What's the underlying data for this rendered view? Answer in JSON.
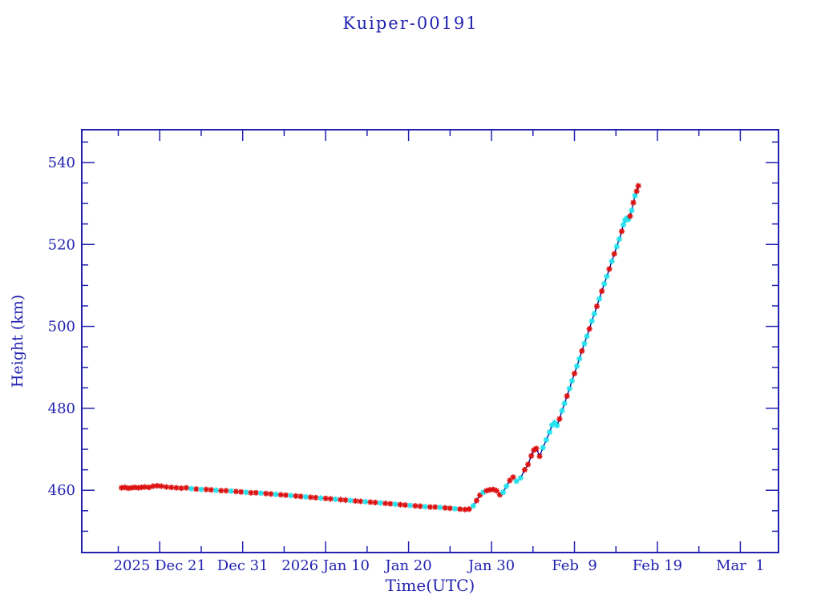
{
  "chart_data": {
    "type": "line",
    "title": "Kuiper-00191",
    "xlabel": "Time(UTC)",
    "ylabel": "Height (km)",
    "x_unit": "days since 2025-12-21 00:00 UTC",
    "xlim": [
      -9.4,
      74.6
    ],
    "ylim": [
      444.8,
      548.0
    ],
    "grid": false,
    "legend": "none",
    "x_major_ticks": [
      {
        "day": 0,
        "label": "2025 Dec 21"
      },
      {
        "day": 10,
        "label": "Dec 31"
      },
      {
        "day": 20,
        "label": "2026 Jan 10"
      },
      {
        "day": 30,
        "label": "Jan 20"
      },
      {
        "day": 40,
        "label": "Jan 30"
      },
      {
        "day": 50,
        "label": "Feb  9"
      },
      {
        "day": 60,
        "label": "Feb 19"
      },
      {
        "day": 70,
        "label": "Mar  1"
      }
    ],
    "x_minor_tick_days": [
      -5,
      5,
      15,
      25,
      35,
      45,
      55,
      65
    ],
    "y_major_ticks": [
      460,
      480,
      500,
      520,
      540
    ],
    "y_minor_ticks": [
      450,
      455,
      465,
      470,
      475,
      485,
      490,
      495,
      505,
      510,
      515,
      525,
      530,
      535,
      545
    ],
    "colors": {
      "axis_and_text": "#2222b0",
      "line": "#000090",
      "marker_red": "#dd1111",
      "marker_cyan": "#22e2ec"
    },
    "marker": "asterisk",
    "points_format": [
      "day_offset",
      "height_km",
      "marker_color_r_or_c"
    ],
    "points": [
      [
        -4.6,
        460.6,
        "r"
      ],
      [
        -4.2,
        460.7,
        "r"
      ],
      [
        -3.8,
        460.5,
        "r"
      ],
      [
        -3.4,
        460.6,
        "r"
      ],
      [
        -3.0,
        460.7,
        "r"
      ],
      [
        -2.6,
        460.6,
        "r"
      ],
      [
        -2.2,
        460.7,
        "r"
      ],
      [
        -1.8,
        460.8,
        "r"
      ],
      [
        -1.3,
        460.7,
        "r"
      ],
      [
        -0.8,
        461.0,
        "r"
      ],
      [
        -0.3,
        461.1,
        "r"
      ],
      [
        0.2,
        461.0,
        "r"
      ],
      [
        0.8,
        460.8,
        "r"
      ],
      [
        1.4,
        460.7,
        "r"
      ],
      [
        2.0,
        460.6,
        "r"
      ],
      [
        2.6,
        460.5,
        "r"
      ],
      [
        3.2,
        460.6,
        "r"
      ],
      [
        3.8,
        460.4,
        "c"
      ],
      [
        4.4,
        460.3,
        "r"
      ],
      [
        5.0,
        460.2,
        "c"
      ],
      [
        5.6,
        460.2,
        "r"
      ],
      [
        6.2,
        460.1,
        "r"
      ],
      [
        6.8,
        460.0,
        "c"
      ],
      [
        7.4,
        459.9,
        "r"
      ],
      [
        8.0,
        459.9,
        "r"
      ],
      [
        8.6,
        459.8,
        "c"
      ],
      [
        9.2,
        459.7,
        "r"
      ],
      [
        9.8,
        459.6,
        "r"
      ],
      [
        10.4,
        459.5,
        "c"
      ],
      [
        11.0,
        459.4,
        "r"
      ],
      [
        11.6,
        459.4,
        "r"
      ],
      [
        12.2,
        459.3,
        "c"
      ],
      [
        12.8,
        459.2,
        "r"
      ],
      [
        13.4,
        459.1,
        "r"
      ],
      [
        14.0,
        459.0,
        "c"
      ],
      [
        14.6,
        458.9,
        "r"
      ],
      [
        15.2,
        458.8,
        "r"
      ],
      [
        15.8,
        458.7,
        "c"
      ],
      [
        16.4,
        458.6,
        "r"
      ],
      [
        17.0,
        458.5,
        "r"
      ],
      [
        17.6,
        458.4,
        "c"
      ],
      [
        18.2,
        458.3,
        "r"
      ],
      [
        18.8,
        458.2,
        "r"
      ],
      [
        19.4,
        458.1,
        "c"
      ],
      [
        20.0,
        458.0,
        "r"
      ],
      [
        20.6,
        457.9,
        "r"
      ],
      [
        21.2,
        457.8,
        "c"
      ],
      [
        21.8,
        457.7,
        "r"
      ],
      [
        22.4,
        457.6,
        "r"
      ],
      [
        23.0,
        457.5,
        "c"
      ],
      [
        23.6,
        457.4,
        "r"
      ],
      [
        24.2,
        457.3,
        "r"
      ],
      [
        24.8,
        457.2,
        "c"
      ],
      [
        25.4,
        457.1,
        "r"
      ],
      [
        26.0,
        457.0,
        "r"
      ],
      [
        26.6,
        456.9,
        "c"
      ],
      [
        27.2,
        456.8,
        "r"
      ],
      [
        27.8,
        456.7,
        "r"
      ],
      [
        28.4,
        456.6,
        "c"
      ],
      [
        29.0,
        456.5,
        "r"
      ],
      [
        29.6,
        456.4,
        "r"
      ],
      [
        30.2,
        456.3,
        "c"
      ],
      [
        30.8,
        456.2,
        "r"
      ],
      [
        31.4,
        456.1,
        "r"
      ],
      [
        32.0,
        456.0,
        "c"
      ],
      [
        32.6,
        455.9,
        "r"
      ],
      [
        33.2,
        455.9,
        "r"
      ],
      [
        33.8,
        455.8,
        "c"
      ],
      [
        34.4,
        455.7,
        "r"
      ],
      [
        35.0,
        455.6,
        "r"
      ],
      [
        35.6,
        455.5,
        "c"
      ],
      [
        36.2,
        455.4,
        "r"
      ],
      [
        36.8,
        455.3,
        "r"
      ],
      [
        37.3,
        455.4,
        "r"
      ],
      [
        37.8,
        456.2,
        "c"
      ],
      [
        38.2,
        457.5,
        "r"
      ],
      [
        38.6,
        458.8,
        "r"
      ],
      [
        39.0,
        459.5,
        "c"
      ],
      [
        39.4,
        459.9,
        "r"
      ],
      [
        39.8,
        460.1,
        "r"
      ],
      [
        40.2,
        460.2,
        "r"
      ],
      [
        40.6,
        459.9,
        "r"
      ],
      [
        41.0,
        458.9,
        "r"
      ],
      [
        41.4,
        459.5,
        "c"
      ],
      [
        41.8,
        461.0,
        "c"
      ],
      [
        42.2,
        462.4,
        "r"
      ],
      [
        42.6,
        463.2,
        "r"
      ],
      [
        43.0,
        462.2,
        "c"
      ],
      [
        43.5,
        463.0,
        "c"
      ],
      [
        44.0,
        465.0,
        "r"
      ],
      [
        44.4,
        466.3,
        "r"
      ],
      [
        44.8,
        468.4,
        "r"
      ],
      [
        45.1,
        469.8,
        "r"
      ],
      [
        45.4,
        470.2,
        "r"
      ],
      [
        45.8,
        468.3,
        "r"
      ],
      [
        46.2,
        470.4,
        "c"
      ],
      [
        46.6,
        472.3,
        "c"
      ],
      [
        47.0,
        474.2,
        "c"
      ],
      [
        47.3,
        475.9,
        "c"
      ],
      [
        47.6,
        476.5,
        "c"
      ],
      [
        47.9,
        475.8,
        "c"
      ],
      [
        48.2,
        477.4,
        "r"
      ],
      [
        48.5,
        479.4,
        "c"
      ],
      [
        48.8,
        481.2,
        "c"
      ],
      [
        49.1,
        483.0,
        "r"
      ],
      [
        49.4,
        484.8,
        "c"
      ],
      [
        49.7,
        486.7,
        "c"
      ],
      [
        50.0,
        488.5,
        "r"
      ],
      [
        50.3,
        490.3,
        "c"
      ],
      [
        50.6,
        492.1,
        "c"
      ],
      [
        50.9,
        494.0,
        "r"
      ],
      [
        51.2,
        495.8,
        "c"
      ],
      [
        51.5,
        497.6,
        "c"
      ],
      [
        51.8,
        499.4,
        "r"
      ],
      [
        52.1,
        501.3,
        "c"
      ],
      [
        52.4,
        503.1,
        "c"
      ],
      [
        52.7,
        504.9,
        "r"
      ],
      [
        53.0,
        506.7,
        "c"
      ],
      [
        53.3,
        508.6,
        "r"
      ],
      [
        53.6,
        510.4,
        "c"
      ],
      [
        53.9,
        512.2,
        "c"
      ],
      [
        54.2,
        514.0,
        "r"
      ],
      [
        54.5,
        515.9,
        "c"
      ],
      [
        54.8,
        517.7,
        "r"
      ],
      [
        55.1,
        519.5,
        "c"
      ],
      [
        55.4,
        521.3,
        "c"
      ],
      [
        55.7,
        523.2,
        "r"
      ],
      [
        55.9,
        524.8,
        "c"
      ],
      [
        56.1,
        525.9,
        "c"
      ],
      [
        56.3,
        526.4,
        "c"
      ],
      [
        56.5,
        526.1,
        "c"
      ],
      [
        56.7,
        526.9,
        "r"
      ],
      [
        56.9,
        528.3,
        "c"
      ],
      [
        57.1,
        530.2,
        "r"
      ],
      [
        57.3,
        531.9,
        "c"
      ],
      [
        57.5,
        533.0,
        "r"
      ],
      [
        57.7,
        534.3,
        "r"
      ]
    ]
  }
}
